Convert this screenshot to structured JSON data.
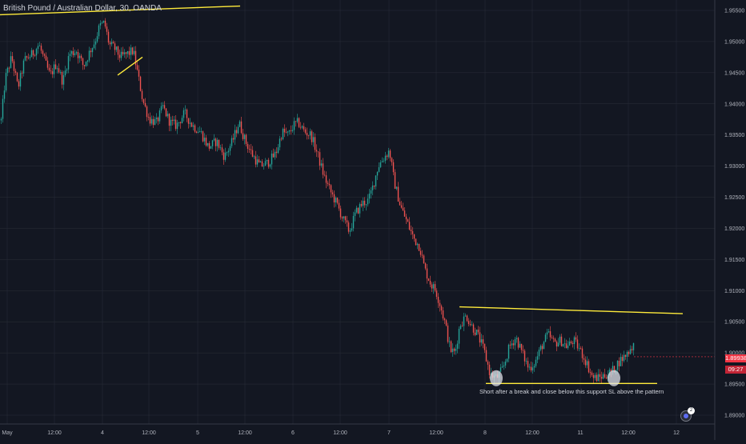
{
  "header": {
    "symbol_line": "British Pound / Australian Dollar, 30, OANDA"
  },
  "price_axis": {
    "ticks": [
      "1.95500",
      "1.95000",
      "1.94500",
      "1.94000",
      "1.93500",
      "1.93000",
      "1.92500",
      "1.92000",
      "1.91500",
      "1.91000",
      "1.90500",
      "1.90000",
      "1.89500",
      "1.89000"
    ],
    "last_price": "1.89938",
    "countdown": "09:27",
    "last_price_color": "#f23645"
  },
  "time_axis": {
    "labels": [
      "May",
      "12:00",
      "4",
      "12:00",
      "5",
      "12:00",
      "6",
      "12:00",
      "7",
      "12:00",
      "8",
      "12:00",
      "11",
      "12:00",
      "12"
    ]
  },
  "annotation": {
    "text": "Short after a break and close below this support SL above the pattern"
  },
  "badge": {
    "count": "2"
  },
  "colors": {
    "up": "#26a69a",
    "down": "#ef5350",
    "line": "#ffeb3b",
    "background": "#131722",
    "grid": "#2a2e39"
  },
  "chart_data": {
    "type": "candlestick",
    "title": "British Pound / Australian Dollar, 30, OANDA",
    "ylim": [
      1.8885,
      1.9562
    ],
    "path": [
      [
        0,
        1.936
      ],
      [
        6,
        1.944
      ],
      [
        14,
        1.9475
      ],
      [
        22,
        1.9425
      ],
      [
        30,
        1.947
      ],
      [
        40,
        1.948
      ],
      [
        48,
        1.9495
      ],
      [
        55,
        1.947
      ],
      [
        62,
        1.9445
      ],
      [
        70,
        1.9465
      ],
      [
        78,
        1.9435
      ],
      [
        86,
        1.948
      ],
      [
        95,
        1.9485
      ],
      [
        104,
        1.946
      ],
      [
        112,
        1.9485
      ],
      [
        118,
        1.95
      ],
      [
        124,
        1.9525
      ],
      [
        130,
        1.953
      ],
      [
        136,
        1.9495
      ],
      [
        142,
        1.949
      ],
      [
        150,
        1.9475
      ],
      [
        158,
        1.948
      ],
      [
        166,
        1.9485
      ],
      [
        172,
        1.9445
      ],
      [
        178,
        1.9405
      ],
      [
        186,
        1.9375
      ],
      [
        195,
        1.937
      ],
      [
        203,
        1.9395
      ],
      [
        212,
        1.937
      ],
      [
        220,
        1.9365
      ],
      [
        230,
        1.9385
      ],
      [
        240,
        1.9365
      ],
      [
        250,
        1.9355
      ],
      [
        260,
        1.933
      ],
      [
        270,
        1.934
      ],
      [
        280,
        1.9315
      ],
      [
        290,
        1.934
      ],
      [
        298,
        1.937
      ],
      [
        306,
        1.934
      ],
      [
        314,
        1.932
      ],
      [
        324,
        1.93
      ],
      [
        334,
        1.9305
      ],
      [
        344,
        1.932
      ],
      [
        352,
        1.9355
      ],
      [
        360,
        1.935
      ],
      [
        366,
        1.9365
      ],
      [
        372,
        1.937
      ],
      [
        380,
        1.9355
      ],
      [
        388,
        1.935
      ],
      [
        396,
        1.932
      ],
      [
        404,
        1.9285
      ],
      [
        412,
        1.926
      ],
      [
        420,
        1.924
      ],
      [
        428,
        1.9215
      ],
      [
        436,
        1.9195
      ],
      [
        444,
        1.9225
      ],
      [
        452,
        1.924
      ],
      [
        460,
        1.9245
      ],
      [
        466,
        1.927
      ],
      [
        472,
        1.93
      ],
      [
        480,
        1.9315
      ],
      [
        486,
        1.9325
      ],
      [
        492,
        1.9275
      ],
      [
        500,
        1.9235
      ],
      [
        508,
        1.921
      ],
      [
        516,
        1.9185
      ],
      [
        524,
        1.917
      ],
      [
        530,
        1.9135
      ],
      [
        538,
        1.911
      ],
      [
        544,
        1.91
      ],
      [
        550,
        1.9075
      ],
      [
        556,
        1.9045
      ],
      [
        562,
        1.9005
      ],
      [
        568,
        1.9
      ],
      [
        574,
        1.9045
      ],
      [
        582,
        1.906
      ],
      [
        588,
        1.9045
      ],
      [
        596,
        1.903
      ],
      [
        604,
        1.9005
      ],
      [
        612,
        1.8965
      ],
      [
        620,
        1.896
      ],
      [
        628,
        1.8975
      ],
      [
        636,
        1.901
      ],
      [
        644,
        1.9025
      ],
      [
        652,
        1.9
      ],
      [
        660,
        1.8975
      ],
      [
        668,
        1.8985
      ],
      [
        676,
        1.901
      ],
      [
        684,
        1.903
      ],
      [
        692,
        1.9015
      ],
      [
        700,
        1.902
      ],
      [
        708,
        1.901
      ],
      [
        716,
        1.902
      ],
      [
        724,
        1.9005
      ],
      [
        732,
        1.8985
      ],
      [
        740,
        1.896
      ],
      [
        748,
        1.896
      ],
      [
        756,
        1.8965
      ],
      [
        764,
        1.897
      ],
      [
        772,
        1.8985
      ],
      [
        780,
        1.8995
      ],
      [
        786,
        1.9005
      ],
      [
        792,
        1.9015
      ]
    ],
    "trendlines": [
      {
        "from": [
          0,
          1.9543
        ],
        "to": [
          300,
          1.9557
        ]
      },
      {
        "from": [
          147,
          1.9446
        ],
        "to": [
          178,
          1.9475
        ]
      },
      {
        "from": [
          574,
          1.9074
        ],
        "to": [
          853,
          1.9063
        ]
      },
      {
        "from": [
          607,
          1.8951
        ],
        "to": [
          821,
          1.8951
        ]
      }
    ],
    "highlights": [
      {
        "x": 620,
        "y": 1.8953
      },
      {
        "x": 767,
        "y": 1.8953
      }
    ]
  }
}
